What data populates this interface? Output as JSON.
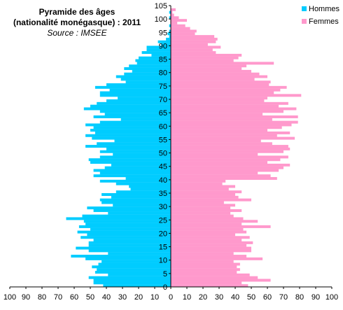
{
  "chart_data": {
    "type": "bar",
    "orientation": "horizontal",
    "layout": "population-pyramid",
    "title": "Pyramide des âges",
    "subtitle": "(nationalité monégasque) : 2011",
    "source": "Source : IMSEE",
    "ylim": [
      0,
      105
    ],
    "y_ticks": [
      "0",
      "5",
      "10",
      "15",
      "20",
      "25",
      "30",
      "35",
      "40",
      "45",
      "50",
      "55",
      "60",
      "65",
      "70",
      "75",
      "80",
      "85",
      "90",
      "95",
      "100",
      "105"
    ],
    "x_ticks": [
      "100",
      "90",
      "80",
      "70",
      "60",
      "50",
      "40",
      "30",
      "20",
      "10",
      "0",
      "10",
      "20",
      "30",
      "40",
      "50",
      "60",
      "70",
      "80",
      "90",
      "100"
    ],
    "xlim": [
      0,
      100
    ],
    "legend_position": "top-right",
    "ages": [
      0,
      1,
      2,
      3,
      4,
      5,
      6,
      7,
      8,
      9,
      10,
      11,
      12,
      13,
      14,
      15,
      16,
      17,
      18,
      19,
      20,
      21,
      22,
      23,
      24,
      25,
      26,
      27,
      28,
      29,
      30,
      31,
      32,
      33,
      34,
      35,
      36,
      37,
      38,
      39,
      40,
      41,
      42,
      43,
      44,
      45,
      46,
      47,
      48,
      49,
      50,
      51,
      52,
      53,
      54,
      55,
      56,
      57,
      58,
      59,
      60,
      61,
      62,
      63,
      64,
      65,
      66,
      67,
      68,
      69,
      70,
      71,
      72,
      73,
      74,
      75,
      76,
      77,
      78,
      79,
      80,
      81,
      82,
      83,
      84,
      85,
      86,
      87,
      88,
      89,
      90,
      91,
      92,
      93,
      94,
      95,
      96,
      97,
      98,
      99,
      100,
      101,
      102,
      103
    ],
    "series": [
      {
        "name": "Hommes",
        "color": "#00ccff",
        "values": [
          42,
          48,
          48,
          51,
          39,
          47,
          46,
          49,
          45,
          43,
          53,
          62,
          39,
          51,
          59,
          51,
          51,
          48,
          56,
          52,
          58,
          50,
          57,
          53,
          54,
          65,
          55,
          39,
          48,
          52,
          36,
          43,
          44,
          37,
          43,
          34,
          25,
          26,
          34,
          44,
          28,
          48,
          44,
          48,
          41,
          37,
          50,
          51,
          44,
          36,
          44,
          40,
          53,
          46,
          35,
          49,
          53,
          47,
          50,
          48,
          53,
          44,
          31,
          48,
          41,
          44,
          54,
          50,
          46,
          40,
          33,
          44,
          44,
          38,
          47,
          40,
          28,
          31,
          34,
          29,
          24,
          29,
          26,
          21,
          22,
          20,
          12,
          18,
          15,
          15,
          6,
          8,
          3,
          1,
          2,
          1,
          0,
          1,
          0,
          0,
          1,
          0,
          1,
          0
        ],
        "color_name": "cyan"
      },
      {
        "name": "Femmes",
        "color": "#ff99cc",
        "values": [
          48,
          44,
          62,
          54,
          49,
          41,
          43,
          41,
          43,
          39,
          57,
          47,
          39,
          50,
          50,
          47,
          51,
          44,
          49,
          40,
          47,
          45,
          62,
          44,
          54,
          45,
          39,
          37,
          44,
          37,
          40,
          33,
          50,
          42,
          40,
          44,
          36,
          40,
          32,
          34,
          66,
          62,
          54,
          67,
          70,
          74,
          60,
          68,
          73,
          54,
          70,
          74,
          73,
          63,
          56,
          77,
          66,
          74,
          60,
          69,
          75,
          79,
          63,
          79,
          57,
          70,
          78,
          67,
          73,
          58,
          60,
          81,
          64,
          68,
          72,
          61,
          62,
          52,
          60,
          55,
          50,
          44,
          47,
          64,
          39,
          42,
          44,
          28,
          26,
          31,
          23,
          28,
          29,
          27,
          15,
          16,
          12,
          9,
          4,
          10,
          5,
          2,
          1,
          3
        ],
        "color_name": "pink"
      }
    ]
  }
}
